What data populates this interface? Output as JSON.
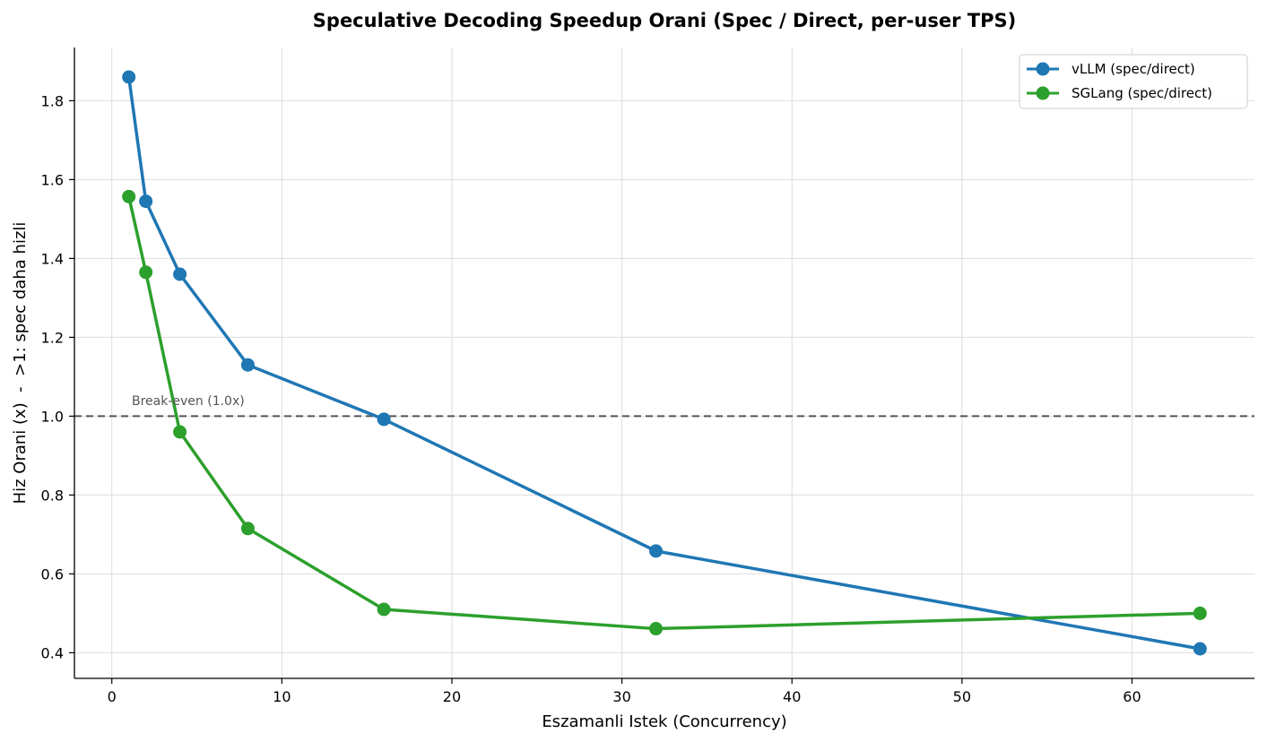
{
  "chart_data": {
    "type": "line",
    "title": "Speculative Decoding Speedup Orani (Spec / Direct, per-user TPS)",
    "xlabel": "Eszamanli Istek (Concurrency)",
    "ylabel": "Hiz Orani (x)  -  >1: spec daha hizli",
    "xlim": [
      -2.2,
      67.2
    ],
    "ylim": [
      0.335,
      1.935
    ],
    "xticks": [
      0,
      10,
      20,
      30,
      40,
      50,
      60
    ],
    "xtick_labels": [
      "0",
      "10",
      "20",
      "30",
      "40",
      "50",
      "60"
    ],
    "yticks": [
      0.4,
      0.6,
      0.8,
      1.0,
      1.2,
      1.4,
      1.6,
      1.8
    ],
    "ytick_labels": [
      "0.4",
      "0.6",
      "0.8",
      "1.0",
      "1.2",
      "1.4",
      "1.6",
      "1.8"
    ],
    "grid": true,
    "legend_position": "top-right",
    "series": [
      {
        "name": "vLLM (spec/direct)",
        "color": "#1f77b4",
        "x": [
          1,
          2,
          4,
          8,
          16,
          32,
          64
        ],
        "y": [
          1.86,
          1.545,
          1.36,
          1.13,
          0.992,
          0.658,
          0.41
        ]
      },
      {
        "name": "SGLang (spec/direct)",
        "color": "#2ca02c",
        "x": [
          1,
          2,
          4,
          8,
          16,
          32,
          64
        ],
        "y": [
          1.557,
          1.365,
          0.96,
          0.715,
          0.51,
          0.461,
          0.5
        ]
      }
    ],
    "reference_line": {
      "y": 1.0,
      "style": "dashed",
      "color": "#555555",
      "label": "Break-even (1.0x)"
    }
  }
}
